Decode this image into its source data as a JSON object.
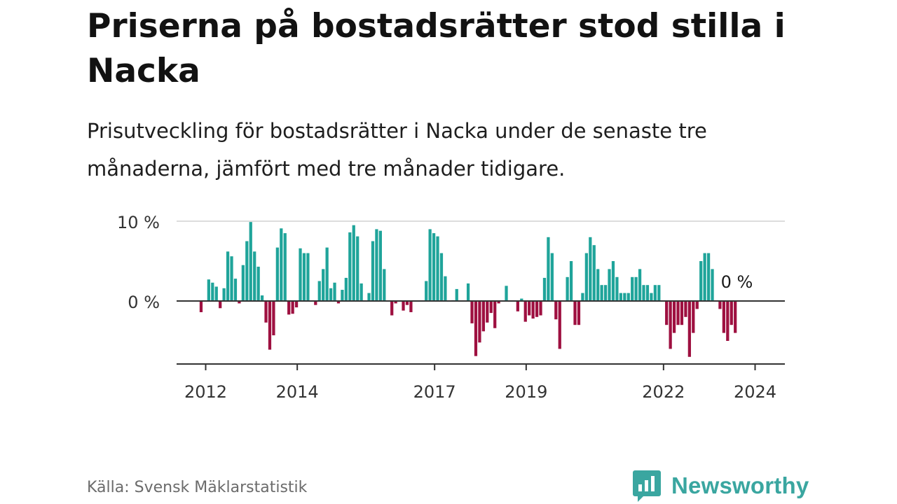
{
  "title": "Priserna på bostadsrätter stod stilla i Nacka",
  "subtitle": "Prisutveckling för bostadsrätter i Nacka under de senaste tre månaderna, jämfört med tre månader tidigare.",
  "source": "Källa: Svensk Mäklarstatistik",
  "brand": {
    "name": "Newsworthy",
    "icon": "newsworthy-bar-chart-logo-icon"
  },
  "colors": {
    "positive": "#1fa49a",
    "negative": "#9e1040",
    "axis": "#333333",
    "grid": "#dddddd",
    "brand": "#3aa6a0"
  },
  "chart_data": {
    "type": "bar",
    "title": "Priserna på bostadsrätter stod stilla i Nacka",
    "ylabel": "",
    "xlabel": "",
    "unit": "%",
    "ylim": [
      -8,
      10
    ],
    "yticks": [
      {
        "value": 0,
        "label": "0 %"
      },
      {
        "value": 10,
        "label": "10 %"
      }
    ],
    "xticks": [
      {
        "value": 2012.0,
        "label": "2012"
      },
      {
        "value": 2014.0,
        "label": "2014"
      },
      {
        "value": 2017.0,
        "label": "2017"
      },
      {
        "value": 2019.0,
        "label": "2019"
      },
      {
        "value": 2022.0,
        "label": "2022"
      },
      {
        "value": 2024.0,
        "label": "2024"
      }
    ],
    "start": 2011.9,
    "frequency": "monthly",
    "last_value_label": "0 %",
    "values": [
      -1.4,
      0,
      2.7,
      2.3,
      1.8,
      -0.9,
      1.6,
      6.2,
      5.6,
      2.8,
      -0.3,
      4.5,
      7.5,
      9.9,
      6.2,
      4.3,
      0.7,
      -2.7,
      -6.1,
      -4.3,
      6.7,
      9.1,
      8.5,
      -1.7,
      -1.6,
      -0.8,
      6.6,
      6.0,
      6.0,
      0,
      -0.5,
      2.5,
      4.0,
      6.7,
      1.6,
      2.3,
      -0.3,
      1.4,
      2.9,
      8.6,
      9.5,
      8.1,
      2.2,
      0,
      1.0,
      7.5,
      9.0,
      8.8,
      4.0,
      0,
      -1.8,
      -0.3,
      0,
      -1.2,
      -0.5,
      -1.4,
      0,
      0,
      0,
      2.5,
      9.0,
      8.5,
      8.1,
      6.0,
      3.1,
      0,
      0.1,
      1.5,
      0,
      0,
      2.2,
      -2.8,
      -6.9,
      -5.2,
      -3.8,
      -2.7,
      -1.5,
      -3.4,
      -0.3,
      0,
      1.9,
      0,
      0,
      -1.3,
      0.3,
      -2.6,
      -1.8,
      -2.2,
      -2.0,
      -1.8,
      2.9,
      8.0,
      6.0,
      -2.3,
      -6.0,
      0,
      3.0,
      5.0,
      -3.0,
      -3.0,
      1.0,
      6.0,
      8.0,
      7.0,
      4.0,
      2.0,
      2.0,
      4.0,
      5.0,
      3.0,
      1.0,
      1.0,
      1.0,
      3.0,
      3.0,
      4.0,
      2.0,
      2.0,
      1.0,
      2.0,
      2.0,
      0,
      -3.0,
      -6.0,
      -4.0,
      -3.0,
      -3.0,
      -2.0,
      -7.0,
      -4.0,
      -1.0,
      5.0,
      6.0,
      6.0,
      4.0,
      0,
      -1.0,
      -4.0,
      -5.0,
      -3.0,
      -4.0,
      0
    ]
  }
}
